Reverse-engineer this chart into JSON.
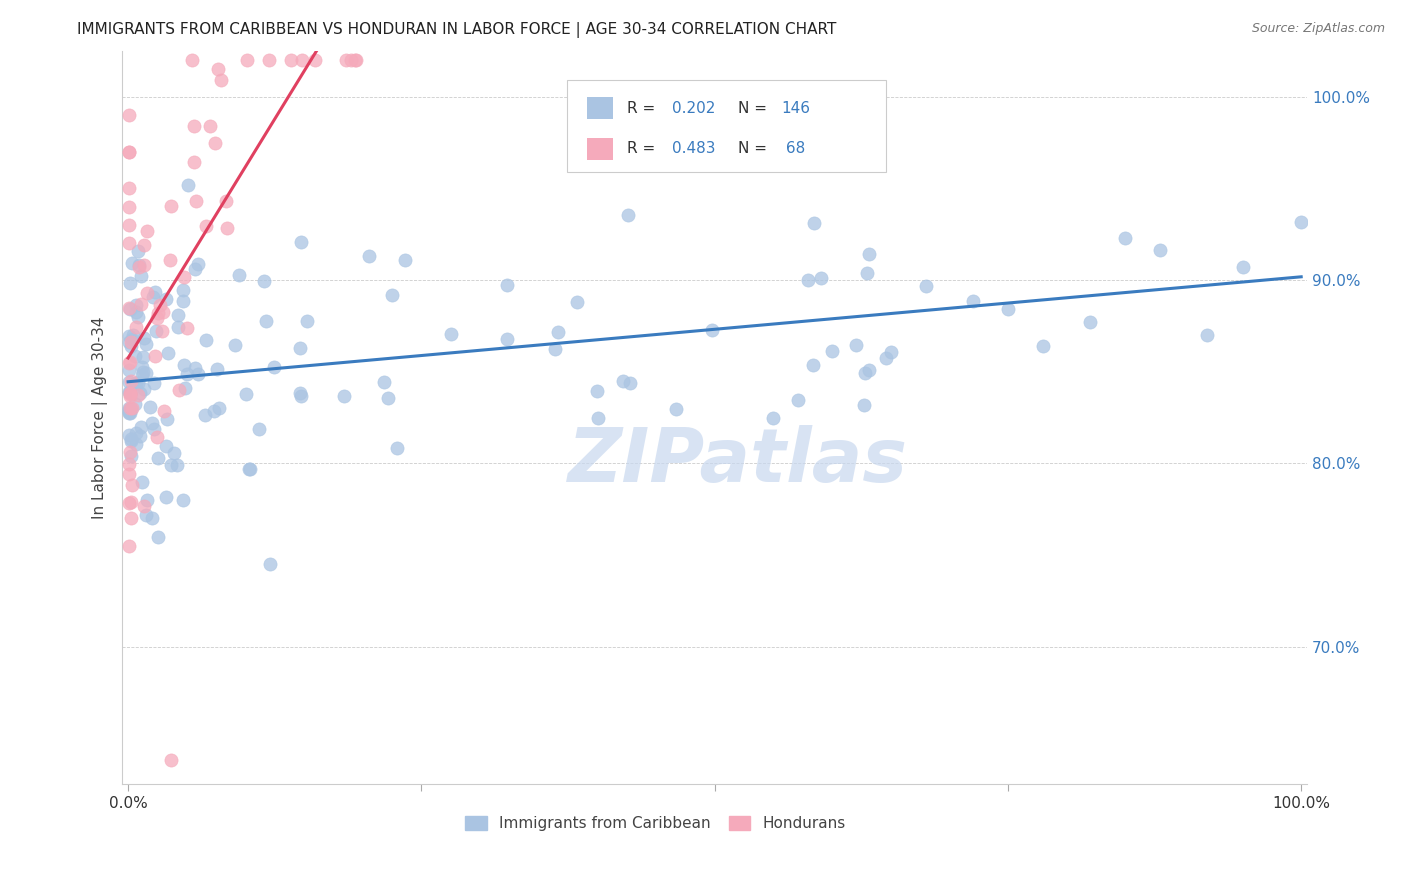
{
  "title": "IMMIGRANTS FROM CARIBBEAN VS HONDURAN IN LABOR FORCE | AGE 30-34 CORRELATION CHART",
  "source": "Source: ZipAtlas.com",
  "ylabel": "In Labor Force | Age 30-34",
  "legend_labels": [
    "Immigrants from Caribbean",
    "Hondurans"
  ],
  "R_caribbean": 0.202,
  "N_caribbean": 146,
  "R_honduran": 0.483,
  "N_honduran": 68,
  "caribbean_color": "#aac4e2",
  "honduran_color": "#f5aabb",
  "caribbean_line_color": "#3a7bbf",
  "honduran_line_color": "#e04060",
  "watermark_color": "#c8d8ef",
  "xlim": [
    0.0,
    1.0
  ],
  "ylim": [
    0.625,
    1.025
  ],
  "yticks": [
    0.7,
    0.8,
    0.9,
    1.0
  ],
  "ytick_labels": [
    "70.0%",
    "80.0%",
    "90.0%",
    "100.0%"
  ],
  "xtick_positions": [
    0.0,
    0.25,
    0.5,
    0.75,
    1.0
  ],
  "xtick_labels": [
    "0.0%",
    "",
    "",
    "",
    "100.0%"
  ]
}
